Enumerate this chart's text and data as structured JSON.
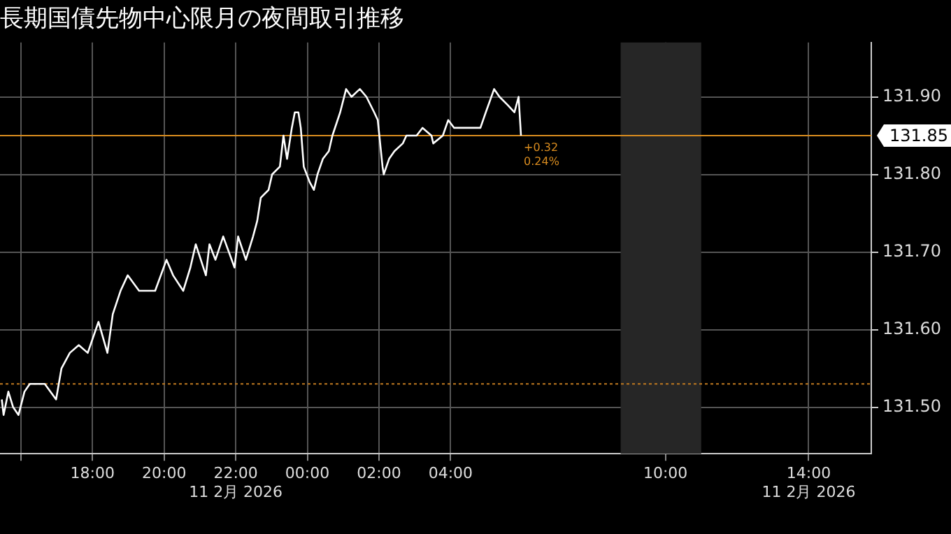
{
  "chart_data": {
    "type": "line",
    "title": "長期国債先物中心限月の夜間取引推移",
    "x": [
      "2026-02-10T15:28",
      "2026-02-10T15:31",
      "2026-02-10T15:39",
      "2026-02-10T15:47",
      "2026-02-10T15:56",
      "2026-02-10T16:06",
      "2026-02-10T16:15",
      "2026-02-10T16:40",
      "2026-02-10T16:59",
      "2026-02-10T17:08",
      "2026-02-10T17:22",
      "2026-02-10T17:37",
      "2026-02-10T17:52",
      "2026-02-10T18:10",
      "2026-02-10T18:25",
      "2026-02-10T18:34",
      "2026-02-10T18:47",
      "2026-02-10T18:59",
      "2026-02-10T19:18",
      "2026-02-10T19:45",
      "2026-02-10T20:04",
      "2026-02-10T20:15",
      "2026-02-10T20:32",
      "2026-02-10T20:44",
      "2026-02-10T20:53",
      "2026-02-10T21:10",
      "2026-02-10T21:16",
      "2026-02-10T21:26",
      "2026-02-10T21:39",
      "2026-02-10T21:58",
      "2026-02-10T22:04",
      "2026-02-10T22:17",
      "2026-02-10T22:29",
      "2026-02-10T22:36",
      "2026-02-10T22:42",
      "2026-02-10T22:55",
      "2026-02-10T23:01",
      "2026-02-10T23:14",
      "2026-02-10T23:20",
      "2026-02-10T23:26",
      "2026-02-10T23:34",
      "2026-02-10T23:39",
      "2026-02-10T23:45",
      "2026-02-10T23:49",
      "2026-02-10T23:54",
      "2026-02-11T00:04",
      "2026-02-11T00:11",
      "2026-02-11T00:17",
      "2026-02-11T00:26",
      "2026-02-11T00:36",
      "2026-02-11T00:42",
      "2026-02-11T00:55",
      "2026-02-11T01:05",
      "2026-02-11T01:14",
      "2026-02-11T01:28",
      "2026-02-11T01:39",
      "2026-02-11T01:52",
      "2026-02-11T01:58",
      "2026-02-11T02:06",
      "2026-02-11T02:08",
      "2026-02-11T02:17",
      "2026-02-11T02:26",
      "2026-02-11T02:40",
      "2026-02-11T02:46",
      "2026-02-11T03:03",
      "2026-02-11T03:13",
      "2026-02-11T03:28",
      "2026-02-11T03:31",
      "2026-02-11T03:47",
      "2026-02-11T03:56",
      "2026-02-11T04:06",
      "2026-02-11T04:19",
      "2026-02-11T04:31",
      "2026-02-11T04:50",
      "2026-02-11T04:59",
      "2026-02-11T05:13",
      "2026-02-11T05:22",
      "2026-02-11T05:35",
      "2026-02-11T05:47",
      "2026-02-11T05:54",
      "2026-02-11T05:58"
    ],
    "series": [
      {
        "color": "#ffffff",
        "values": [
          131.51,
          131.49,
          131.52,
          131.5,
          131.49,
          131.52,
          131.53,
          131.53,
          131.51,
          131.55,
          131.57,
          131.58,
          131.57,
          131.61,
          131.57,
          131.62,
          131.65,
          131.67,
          131.65,
          131.65,
          131.69,
          131.67,
          131.65,
          131.68,
          131.71,
          131.67,
          131.71,
          131.69,
          131.72,
          131.68,
          131.72,
          131.69,
          131.72,
          131.74,
          131.77,
          131.78,
          131.8,
          131.81,
          131.85,
          131.82,
          131.86,
          131.88,
          131.88,
          131.86,
          131.81,
          131.79,
          131.78,
          131.8,
          131.82,
          131.83,
          131.85,
          131.88,
          131.91,
          131.9,
          131.91,
          131.9,
          131.88,
          131.87,
          131.81,
          131.8,
          131.82,
          131.83,
          131.84,
          131.85,
          131.85,
          131.86,
          131.85,
          131.84,
          131.85,
          131.87,
          131.86,
          131.86,
          131.86,
          131.86,
          131.88,
          131.91,
          131.9,
          131.89,
          131.88,
          131.9,
          131.85
        ]
      }
    ],
    "xlim": [
      "2026-02-10T15:25",
      "2026-02-11T15:45"
    ],
    "xticks": [
      {
        "value": "2026-02-10T16:00",
        "label": null
      },
      {
        "value": "2026-02-10T18:00",
        "label": "18:00"
      },
      {
        "value": "2026-02-10T20:00",
        "label": "20:00"
      },
      {
        "value": "2026-02-10T22:00",
        "label": "22:00\n11 2月 2026"
      },
      {
        "value": "2026-02-11T00:00",
        "label": "00:00"
      },
      {
        "value": "2026-02-11T02:00",
        "label": "02:00"
      },
      {
        "value": "2026-02-11T04:00",
        "label": "04:00"
      },
      {
        "value": "2026-02-11T10:00",
        "label": "10:00"
      },
      {
        "value": "2026-02-11T14:00",
        "label": "14:00\n11 2月 2026"
      }
    ],
    "ylim": [
      131.44,
      131.97
    ],
    "yticks": [
      {
        "value": 131.5,
        "label": "131.50"
      },
      {
        "value": 131.6,
        "label": "131.60"
      },
      {
        "value": 131.7,
        "label": "131.70"
      },
      {
        "value": 131.8,
        "label": "131.80"
      },
      {
        "value": 131.9,
        "label": "131.90"
      }
    ],
    "grid": true,
    "legend": false,
    "marker": "none",
    "line_style": "solid",
    "bands": [
      {
        "axis": "x",
        "from": "2026-02-11T08:45",
        "to": "2026-02-11T11:00",
        "color": "#262626"
      }
    ],
    "ref_lines": [
      {
        "axis": "y",
        "value": 131.85,
        "label": "131.85",
        "color": "#d98c1f",
        "line_style": "solid"
      },
      {
        "axis": "y",
        "value": 131.53,
        "color": "#c07a20",
        "line_style": "dotted"
      }
    ],
    "annotations": [
      {
        "text": "+0.32",
        "x": "2026-02-11T05:58",
        "y": 131.85
      },
      {
        "text": "0.24%",
        "x": "2026-02-11T05:58",
        "y": 131.85
      }
    ]
  }
}
